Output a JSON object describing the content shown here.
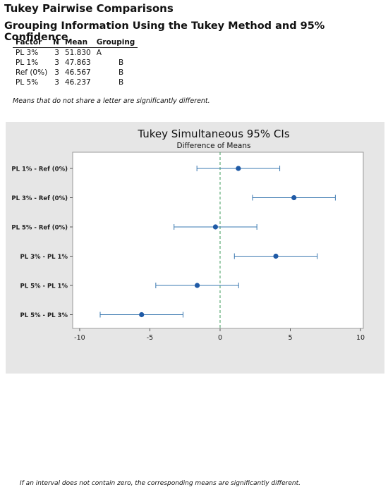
{
  "page": {
    "title": "Tukey Pairwise Comparisons",
    "subtitle": "Grouping Information Using the Tukey Method and 95% Confidence"
  },
  "grouping_table": {
    "headers": [
      "Factor",
      "N",
      "Mean",
      "Grouping"
    ],
    "rows": [
      {
        "factor": "PL 3%",
        "n": "3",
        "mean": "51.830",
        "group_a": "A",
        "group_b": ""
      },
      {
        "factor": "PL 1%",
        "n": "3",
        "mean": "47.863",
        "group_a": "",
        "group_b": "B"
      },
      {
        "factor": "Ref (0%)",
        "n": "3",
        "mean": "46.567",
        "group_a": "",
        "group_b": "B"
      },
      {
        "factor": "PL 5%",
        "n": "3",
        "mean": "46.237",
        "group_a": "",
        "group_b": "B"
      }
    ],
    "note": "Means that do not share a letter are significantly different."
  },
  "chart_data": {
    "type": "scatter",
    "title": "Tukey Simultaneous 95% CIs",
    "subtitle": "Difference of Means",
    "categories": [
      "PL 1% - Ref (0%)",
      "PL 3% - Ref (0%)",
      "PL 5% - Ref (0%)",
      "PL 3% - PL 1%",
      "PL 5% - PL 1%",
      "PL 5% - PL 3%"
    ],
    "series": [
      {
        "values": [
          1.3,
          5.26,
          -0.33,
          3.97,
          -1.63,
          -5.59
        ],
        "lower": [
          -1.65,
          2.31,
          -3.28,
          1.02,
          -4.58,
          -8.54
        ],
        "upper": [
          4.25,
          8.21,
          2.62,
          6.92,
          1.32,
          -2.64
        ]
      }
    ],
    "xlim": [
      -10.5,
      10.2
    ],
    "xticks": [
      -10,
      -5,
      0,
      5,
      10
    ],
    "reference_line": 0,
    "grid": false,
    "footnote": "If an interval does not contain zero, the corresponding means are significantly different."
  },
  "colors": {
    "point": "#1f5aa6",
    "interval": "#3a78b0",
    "zero_line": "#3d9a5a",
    "panel_bg": "#e6e6e6"
  }
}
